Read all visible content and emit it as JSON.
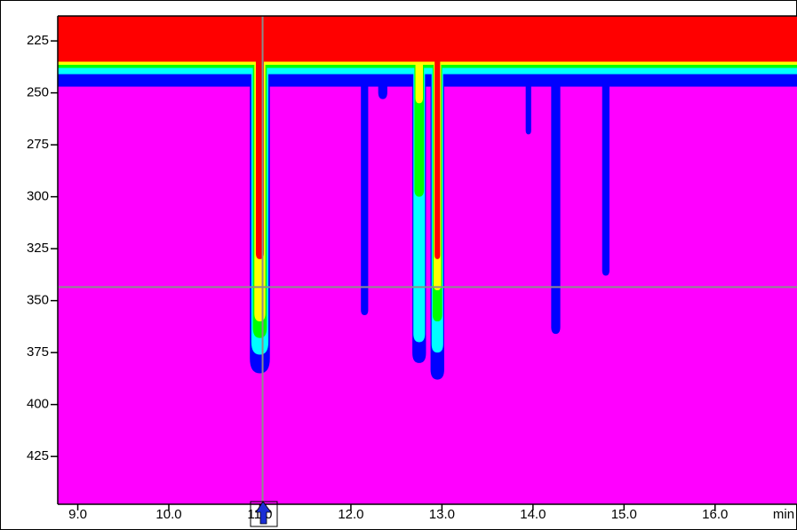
{
  "chart_data": {
    "type": "contour",
    "x_label": "min",
    "xlim": [
      8.78,
      16.9
    ],
    "xticks": [
      {
        "value": 9,
        "label": "9.0"
      },
      {
        "value": 10,
        "label": "10.0"
      },
      {
        "value": 11,
        "label": "11.0"
      },
      {
        "value": 12,
        "label": "12.0"
      },
      {
        "value": 13,
        "label": "13.0"
      },
      {
        "value": 14,
        "label": "14.0"
      },
      {
        "value": 15,
        "label": "15.0"
      },
      {
        "value": 16,
        "label": "16.0"
      }
    ],
    "ylim": [
      213,
      448
    ],
    "yticks": [
      225,
      250,
      275,
      300,
      325,
      350,
      375,
      400,
      425
    ],
    "y_inverted": true,
    "background_color": "#ff00ff",
    "level_colors": [
      "#ff0000",
      "#ffff00",
      "#00ff00",
      "#00ffff",
      "#0000ff"
    ],
    "baseline": [
      235,
      236.5,
      238,
      241,
      247
    ],
    "peaks": [
      {
        "x": 11.0,
        "width": 0.22,
        "depths": [
          330,
          360,
          368,
          376,
          385
        ]
      },
      {
        "x": 12.15,
        "width": 0.08,
        "depths": [
          null,
          null,
          null,
          null,
          357
        ]
      },
      {
        "x": 12.35,
        "width": 0.1,
        "depths": [
          null,
          null,
          null,
          null,
          253
        ]
      },
      {
        "x": 12.75,
        "width": 0.15,
        "depths": [
          null,
          255,
          300,
          370,
          380
        ]
      },
      {
        "x": 12.95,
        "width": 0.15,
        "depths": [
          330,
          345,
          360,
          375,
          388
        ]
      },
      {
        "x": 13.95,
        "width": 0.06,
        "depths": [
          null,
          null,
          null,
          null,
          270
        ]
      },
      {
        "x": 14.25,
        "width": 0.1,
        "depths": [
          null,
          null,
          null,
          null,
          366
        ]
      },
      {
        "x": 14.8,
        "width": 0.08,
        "depths": [
          null,
          null,
          null,
          null,
          338
        ]
      }
    ],
    "cursor": {
      "x": 11.03,
      "y": 343.5,
      "color": "#8c8c8c"
    }
  }
}
